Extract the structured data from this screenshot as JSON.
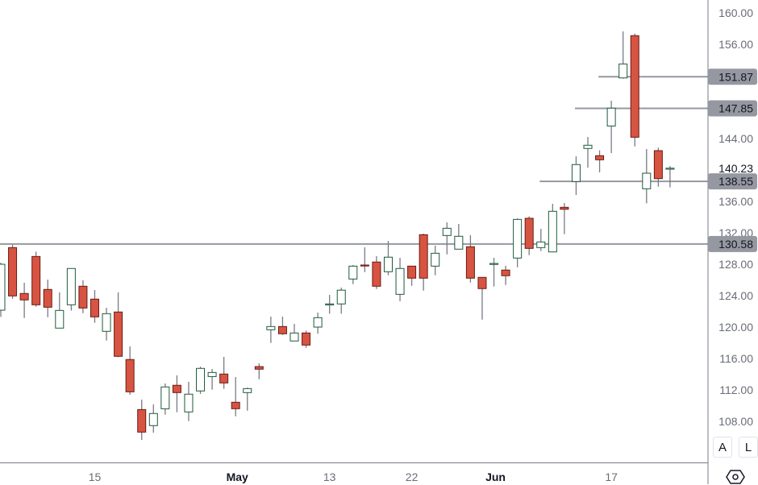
{
  "chart_data": {
    "type": "candlestick",
    "title": "",
    "ylim": [
      105,
      161.6
    ],
    "y_ticks": [
      "160.00",
      "156.00",
      "144.00",
      "136.00",
      "132.00",
      "128.00",
      "124.00",
      "120.00",
      "116.00",
      "112.00",
      "108.00"
    ],
    "x_ticks": [
      {
        "label": "15",
        "index": 8,
        "bold": false
      },
      {
        "label": "May",
        "index": 20,
        "bold": true
      },
      {
        "label": "13",
        "index": 28,
        "bold": false
      },
      {
        "label": "22",
        "index": 35,
        "bold": false
      },
      {
        "label": "Jun",
        "index": 42,
        "bold": true
      },
      {
        "label": "17",
        "index": 52,
        "bold": false
      }
    ],
    "current_price": {
      "label": "140.23",
      "value": 140.23
    },
    "levels": [
      {
        "label": "151.87",
        "value": 151.87,
        "from_index": 52
      },
      {
        "label": "147.85",
        "value": 147.85,
        "from_index": 50
      },
      {
        "label": "138.55",
        "value": 138.55,
        "from_index": 47
      },
      {
        "label": "130.58",
        "value": 130.58,
        "from_index": 0
      }
    ],
    "candles": [
      [
        122.15,
        128.2,
        121.3,
        128.0
      ],
      [
        130.12,
        130.5,
        123.6,
        123.97
      ],
      [
        124.28,
        125.64,
        121.16,
        123.46
      ],
      [
        128.99,
        129.6,
        122.6,
        122.84
      ],
      [
        124.79,
        126.05,
        121.26,
        122.53
      ],
      [
        119.87,
        124.41,
        119.87,
        122.12
      ],
      [
        122.84,
        127.5,
        122.1,
        127.46
      ],
      [
        125.2,
        125.95,
        121.77,
        122.43
      ],
      [
        123.56,
        124.72,
        120.55,
        121.3
      ],
      [
        119.46,
        122.46,
        118.29,
        121.71
      ],
      [
        121.92,
        124.41,
        116.17,
        116.28
      ],
      [
        115.87,
        117.54,
        111.38,
        111.76
      ],
      [
        109.5,
        110.77,
        105.64,
        106.63
      ],
      [
        107.46,
        110.15,
        106.56,
        109.0
      ],
      [
        109.6,
        112.82,
        108.85,
        112.38
      ],
      [
        112.59,
        113.85,
        109.16,
        111.66
      ],
      [
        109.2,
        113.03,
        108.03,
        111.46
      ],
      [
        111.87,
        114.97,
        111.49,
        114.74
      ],
      [
        113.7,
        114.67,
        112.03,
        114.22
      ],
      [
        114.02,
        116.21,
        112.14,
        112.89
      ],
      [
        110.43,
        113.64,
        108.65,
        109.61
      ],
      [
        111.66,
        112.3,
        109.36,
        112.17
      ],
      [
        114.97,
        115.38,
        113.36,
        114.64
      ],
      [
        119.66,
        121.33,
        117.98,
        120.07
      ],
      [
        120.07,
        121.33,
        119.0,
        119.15
      ],
      [
        118.23,
        120.41,
        118.23,
        119.25
      ],
      [
        119.25,
        119.56,
        117.36,
        117.71
      ],
      [
        120.0,
        121.85,
        119.15,
        121.2
      ],
      [
        122.9,
        124.1,
        121.7,
        122.95
      ],
      [
        122.95,
        125.03,
        121.7,
        124.7
      ],
      [
        126.12,
        127.9,
        125.47,
        127.76
      ],
      [
        127.9,
        130.15,
        127.0,
        127.8
      ],
      [
        128.28,
        129.03,
        124.85,
        125.2
      ],
      [
        127.05,
        130.97,
        126.6,
        128.9
      ],
      [
        124.17,
        128.82,
        123.3,
        127.46
      ],
      [
        127.76,
        127.76,
        125.26,
        126.23
      ],
      [
        131.76,
        131.9,
        124.65,
        126.23
      ],
      [
        127.76,
        130.36,
        126.6,
        129.4
      ],
      [
        131.66,
        133.33,
        129.26,
        132.58
      ],
      [
        129.92,
        133.13,
        129.92,
        131.56
      ],
      [
        130.23,
        131.69,
        125.67,
        126.23
      ],
      [
        126.33,
        126.33,
        120.95,
        124.9
      ],
      [
        128.0,
        128.82,
        125.16,
        128.1
      ],
      [
        127.26,
        127.8,
        125.36,
        126.54
      ],
      [
        128.79,
        133.85,
        127.62,
        133.71
      ],
      [
        133.85,
        134.1,
        129.16,
        130.02
      ],
      [
        130.12,
        132.51,
        129.67,
        130.84
      ],
      [
        129.57,
        135.69,
        129.57,
        134.74
      ],
      [
        135.25,
        135.8,
        131.83,
        135.0
      ],
      [
        138.53,
        141.74,
        136.82,
        140.69
      ],
      [
        142.74,
        144.2,
        140.3,
        143.15
      ],
      [
        141.82,
        142.5,
        139.7,
        141.3
      ],
      [
        145.6,
        148.82,
        142.15,
        147.87
      ],
      [
        151.72,
        157.64,
        151.62,
        153.5
      ],
      [
        157.1,
        157.36,
        143.0,
        144.17
      ],
      [
        137.61,
        142.67,
        135.76,
        139.59
      ],
      [
        142.46,
        142.84,
        137.88,
        138.9
      ],
      [
        140.1,
        140.5,
        137.8,
        140.23
      ]
    ],
    "candle_fields": [
      "open",
      "high",
      "low",
      "close"
    ],
    "colors": {
      "up_stroke": "#1e5a3a",
      "up_fill": "#ffffff",
      "down_stroke": "#6b1a12",
      "down_fill": "#d75442",
      "wick": "#787b86",
      "level": "#9598a1",
      "badge": "#9598a1"
    }
  },
  "controls": {
    "auto_label": "A",
    "log_label": "L",
    "settings_icon": "settings-hexagon-icon"
  }
}
